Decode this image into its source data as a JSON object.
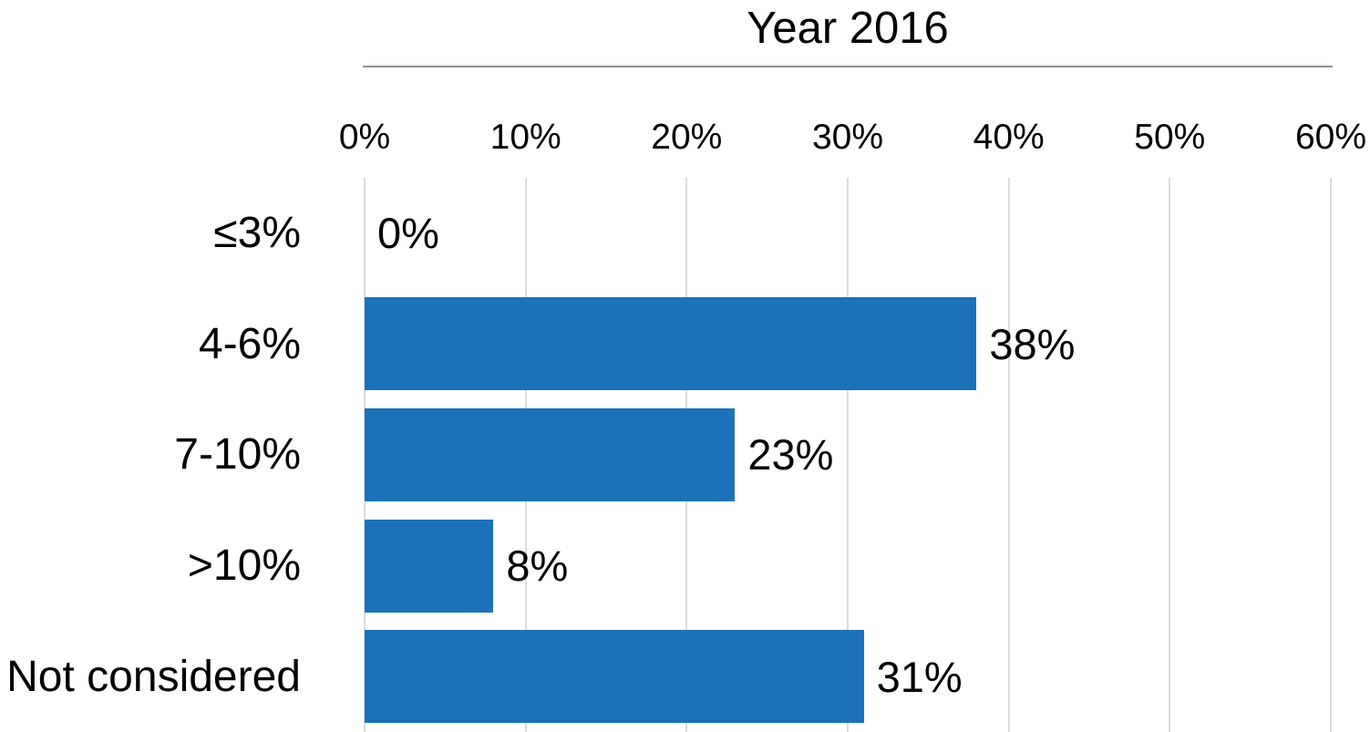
{
  "chart_data": {
    "type": "bar",
    "orientation": "horizontal",
    "title": "Year 2016",
    "categories": [
      "≤3%",
      "4-6%",
      "7-10%",
      ">10%",
      "Not considered"
    ],
    "values": [
      0,
      38,
      23,
      8,
      31
    ],
    "data_labels": [
      "0%",
      "38%",
      "23%",
      "8%",
      "31%"
    ],
    "x_ticks": [
      "0%",
      "10%",
      "20%",
      "30%",
      "40%",
      "50%",
      "60%"
    ],
    "x_tick_values": [
      0,
      10,
      20,
      30,
      40,
      50,
      60
    ],
    "xlim": [
      0,
      60
    ],
    "xlabel": "",
    "ylabel": "",
    "grid": "vertical",
    "legend": "none",
    "colors": {
      "bar": "#1c72b8",
      "gridline": "#dcdcdc",
      "title_rule": "#8f8f8f",
      "text": "#000000",
      "background": "#ffffff"
    }
  }
}
